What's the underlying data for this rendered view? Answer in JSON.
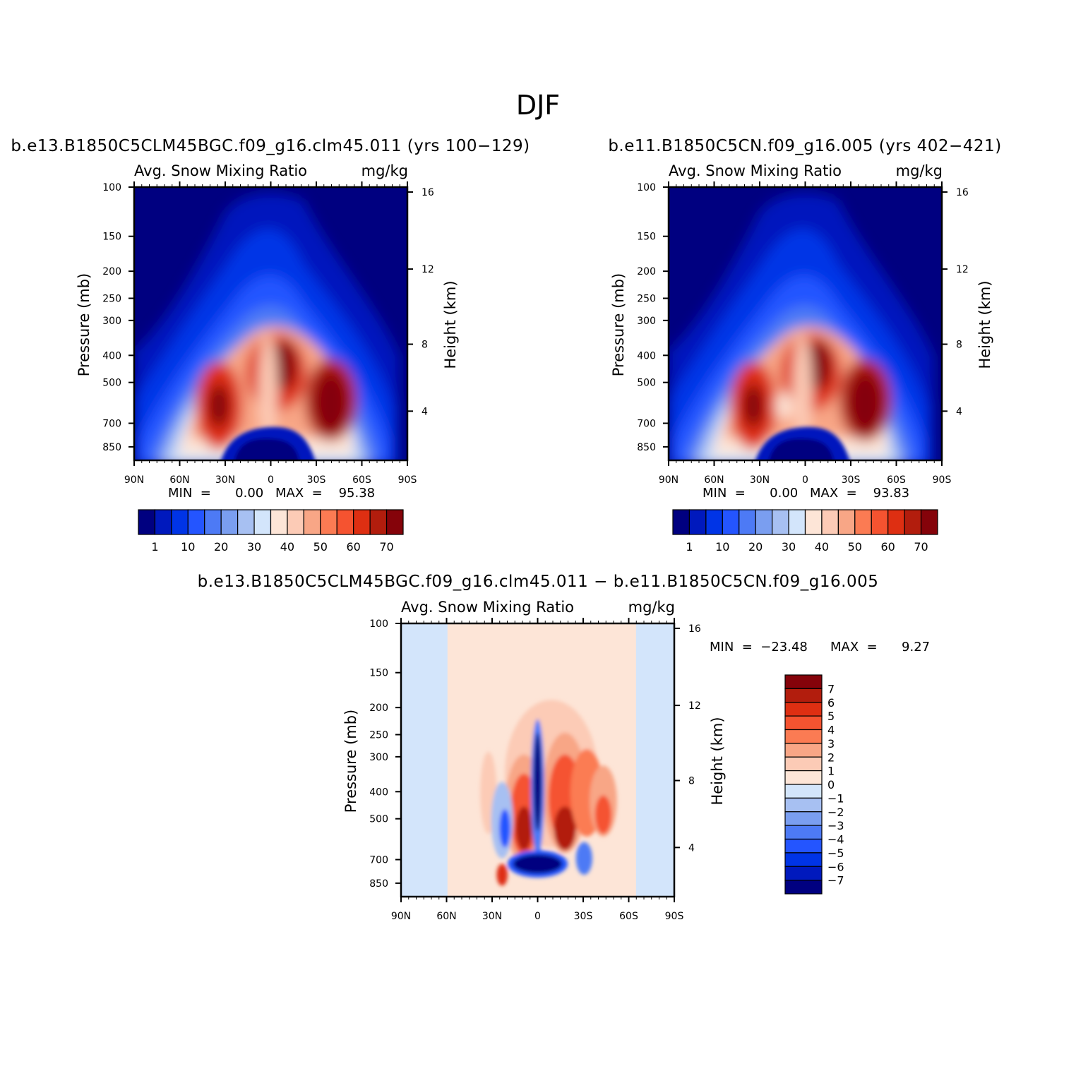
{
  "figure": {
    "title": "DJF"
  },
  "colors": {
    "mean_scale": [
      "#000080",
      "#0019bd",
      "#0034e6",
      "#2455ff",
      "#4d7af5",
      "#7a9ef0",
      "#a7c0f2",
      "#d3e5fb",
      "#fde5d7",
      "#fccbb6",
      "#f8a686",
      "#fb7b53",
      "#f55330",
      "#de2f12",
      "#b21d0d",
      "#85030a"
    ],
    "diff_scale": [
      "#85030a",
      "#b21d0d",
      "#de2f12",
      "#f55330",
      "#fb7b53",
      "#f8a686",
      "#fccbb6",
      "#fde5d7",
      "#d3e5fb",
      "#a7c0f2",
      "#7a9ef0",
      "#4d7af5",
      "#2455ff",
      "#0034e6",
      "#0019bd",
      "#000080"
    ]
  },
  "panels": {
    "left": {
      "run": "b.e13.B1850C5CLM45BGC.f09_g16.clm45.011  (yrs  100−129)",
      "variable": "Avg.  Snow  Mixing  Ratio",
      "units": "mg/kg",
      "ylabel": "Pressure  (mb)",
      "ylabel_right": "Height  (km)",
      "min_text": "MIN  =      0.00",
      "max_text": "MAX  =    95.38"
    },
    "right": {
      "run": "b.e11.B1850C5CN.f09_g16.005  (yrs  402−421)",
      "variable": "Avg.  Snow  Mixing  Ratio",
      "units": "mg/kg",
      "ylabel": "Pressure  (mb)",
      "ylabel_right": "Height  (km)",
      "min_text": "MIN  =      0.00",
      "max_text": "MAX  =    93.83"
    },
    "diff": {
      "run": "b.e13.B1850C5CLM45BGC.f09_g16.clm45.011  −  b.e11.B1850C5CN.f09_g16.005",
      "variable": "Avg.  Snow  Mixing  Ratio",
      "units": "mg/kg",
      "ylabel": "Pressure  (mb)",
      "ylabel_right": "Height  (km)",
      "min_text": "MIN  =  −23.48",
      "max_text": "MAX  =      9.27"
    }
  },
  "chart_data": [
    {
      "type": "heatmap",
      "panel": "left",
      "x_ticks": [
        "90N",
        "60N",
        "30N",
        "0",
        "30S",
        "60S",
        "90S"
      ],
      "y_ticks": [
        "100",
        "150",
        "200",
        "250",
        "300",
        "400",
        "500",
        "700",
        "850"
      ],
      "y_ticks_right": [
        "16",
        "12",
        "8",
        "4"
      ],
      "colorbar_labels": [
        "1",
        "10",
        "20",
        "30",
        "40",
        "50",
        "60",
        "70"
      ],
      "max": 95.38,
      "min": 0.0
    },
    {
      "type": "heatmap",
      "panel": "right",
      "x_ticks": [
        "90N",
        "60N",
        "30N",
        "0",
        "30S",
        "60S",
        "90S"
      ],
      "y_ticks": [
        "100",
        "150",
        "200",
        "250",
        "300",
        "400",
        "500",
        "700",
        "850"
      ],
      "y_ticks_right": [
        "16",
        "12",
        "8",
        "4"
      ],
      "colorbar_labels": [
        "1",
        "10",
        "20",
        "30",
        "40",
        "50",
        "60",
        "70"
      ],
      "max": 93.83,
      "min": 0.0
    },
    {
      "type": "heatmap",
      "panel": "diff",
      "x_ticks": [
        "90N",
        "60N",
        "30N",
        "0",
        "30S",
        "60S",
        "90S"
      ],
      "y_ticks": [
        "100",
        "150",
        "200",
        "250",
        "300",
        "400",
        "500",
        "700",
        "850"
      ],
      "y_ticks_right": [
        "16",
        "12",
        "8",
        "4"
      ],
      "colorbar_labels": [
        "7",
        "6",
        "5",
        "4",
        "3",
        "2",
        "1",
        "0",
        "−1",
        "−2",
        "−3",
        "−4",
        "−5",
        "−6",
        "−7"
      ],
      "max": 9.27,
      "min": -23.48
    }
  ]
}
